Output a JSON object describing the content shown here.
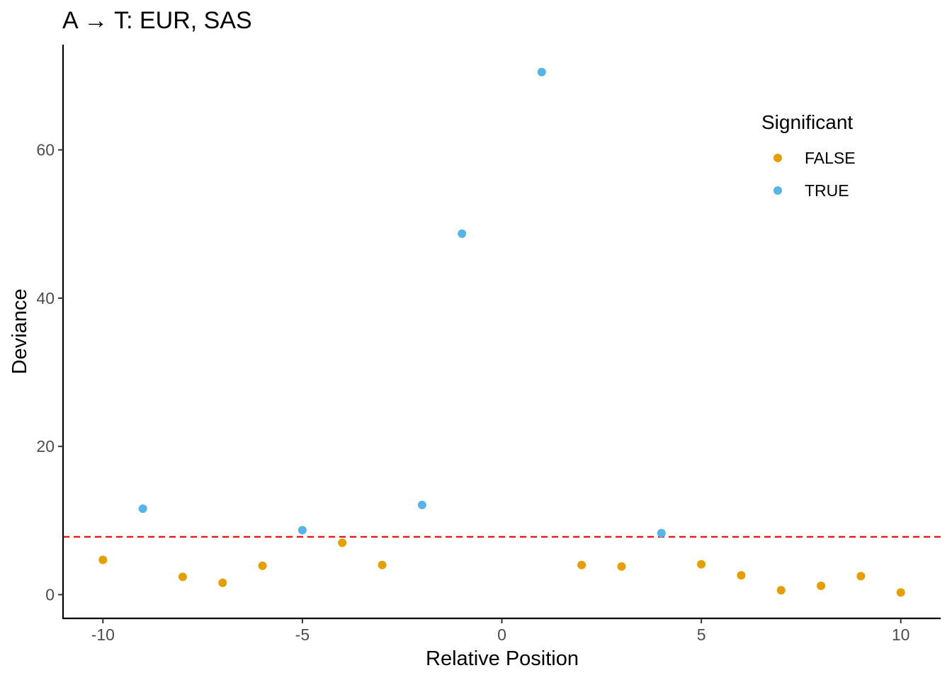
{
  "chart_data": {
    "type": "scatter",
    "title": "A → T: EUR, SAS",
    "xlabel": "Relative Position",
    "ylabel": "Deviance",
    "xlim": [
      -11,
      11
    ],
    "ylim": [
      -3.2,
      74.2
    ],
    "x_ticks": [
      -10,
      -5,
      0,
      5,
      10
    ],
    "x_tick_labels": [
      "-10",
      "-5",
      "0",
      "5",
      "10"
    ],
    "y_ticks": [
      0,
      20,
      40,
      60
    ],
    "y_tick_labels": [
      "0",
      "20",
      "40",
      "60"
    ],
    "grid": false,
    "threshold_line": {
      "y": 7.8,
      "style": "dashed",
      "color": "#ee1111"
    },
    "legend": {
      "title": "Significant",
      "placement": "top-right",
      "entries": [
        {
          "label": "FALSE",
          "color": "#E69F00"
        },
        {
          "label": "TRUE",
          "color": "#56B4E9"
        }
      ]
    },
    "series": [
      {
        "name": "FALSE",
        "color": "#E69F00",
        "points": [
          {
            "x": -10,
            "y": 4.7
          },
          {
            "x": -8,
            "y": 2.4
          },
          {
            "x": -7,
            "y": 1.6
          },
          {
            "x": -6,
            "y": 3.9
          },
          {
            "x": -4,
            "y": 7.0
          },
          {
            "x": -3,
            "y": 4.0
          },
          {
            "x": 2,
            "y": 4.0
          },
          {
            "x": 3,
            "y": 3.8
          },
          {
            "x": 5,
            "y": 4.1
          },
          {
            "x": 6,
            "y": 2.6
          },
          {
            "x": 7,
            "y": 0.6
          },
          {
            "x": 8,
            "y": 1.2
          },
          {
            "x": 9,
            "y": 2.5
          },
          {
            "x": 10,
            "y": 0.3
          }
        ]
      },
      {
        "name": "TRUE",
        "color": "#56B4E9",
        "points": [
          {
            "x": -9,
            "y": 11.6
          },
          {
            "x": -5,
            "y": 8.7
          },
          {
            "x": -2,
            "y": 12.1
          },
          {
            "x": -1,
            "y": 48.7
          },
          {
            "x": 1,
            "y": 70.5
          },
          {
            "x": 4,
            "y": 8.3
          }
        ]
      }
    ]
  }
}
